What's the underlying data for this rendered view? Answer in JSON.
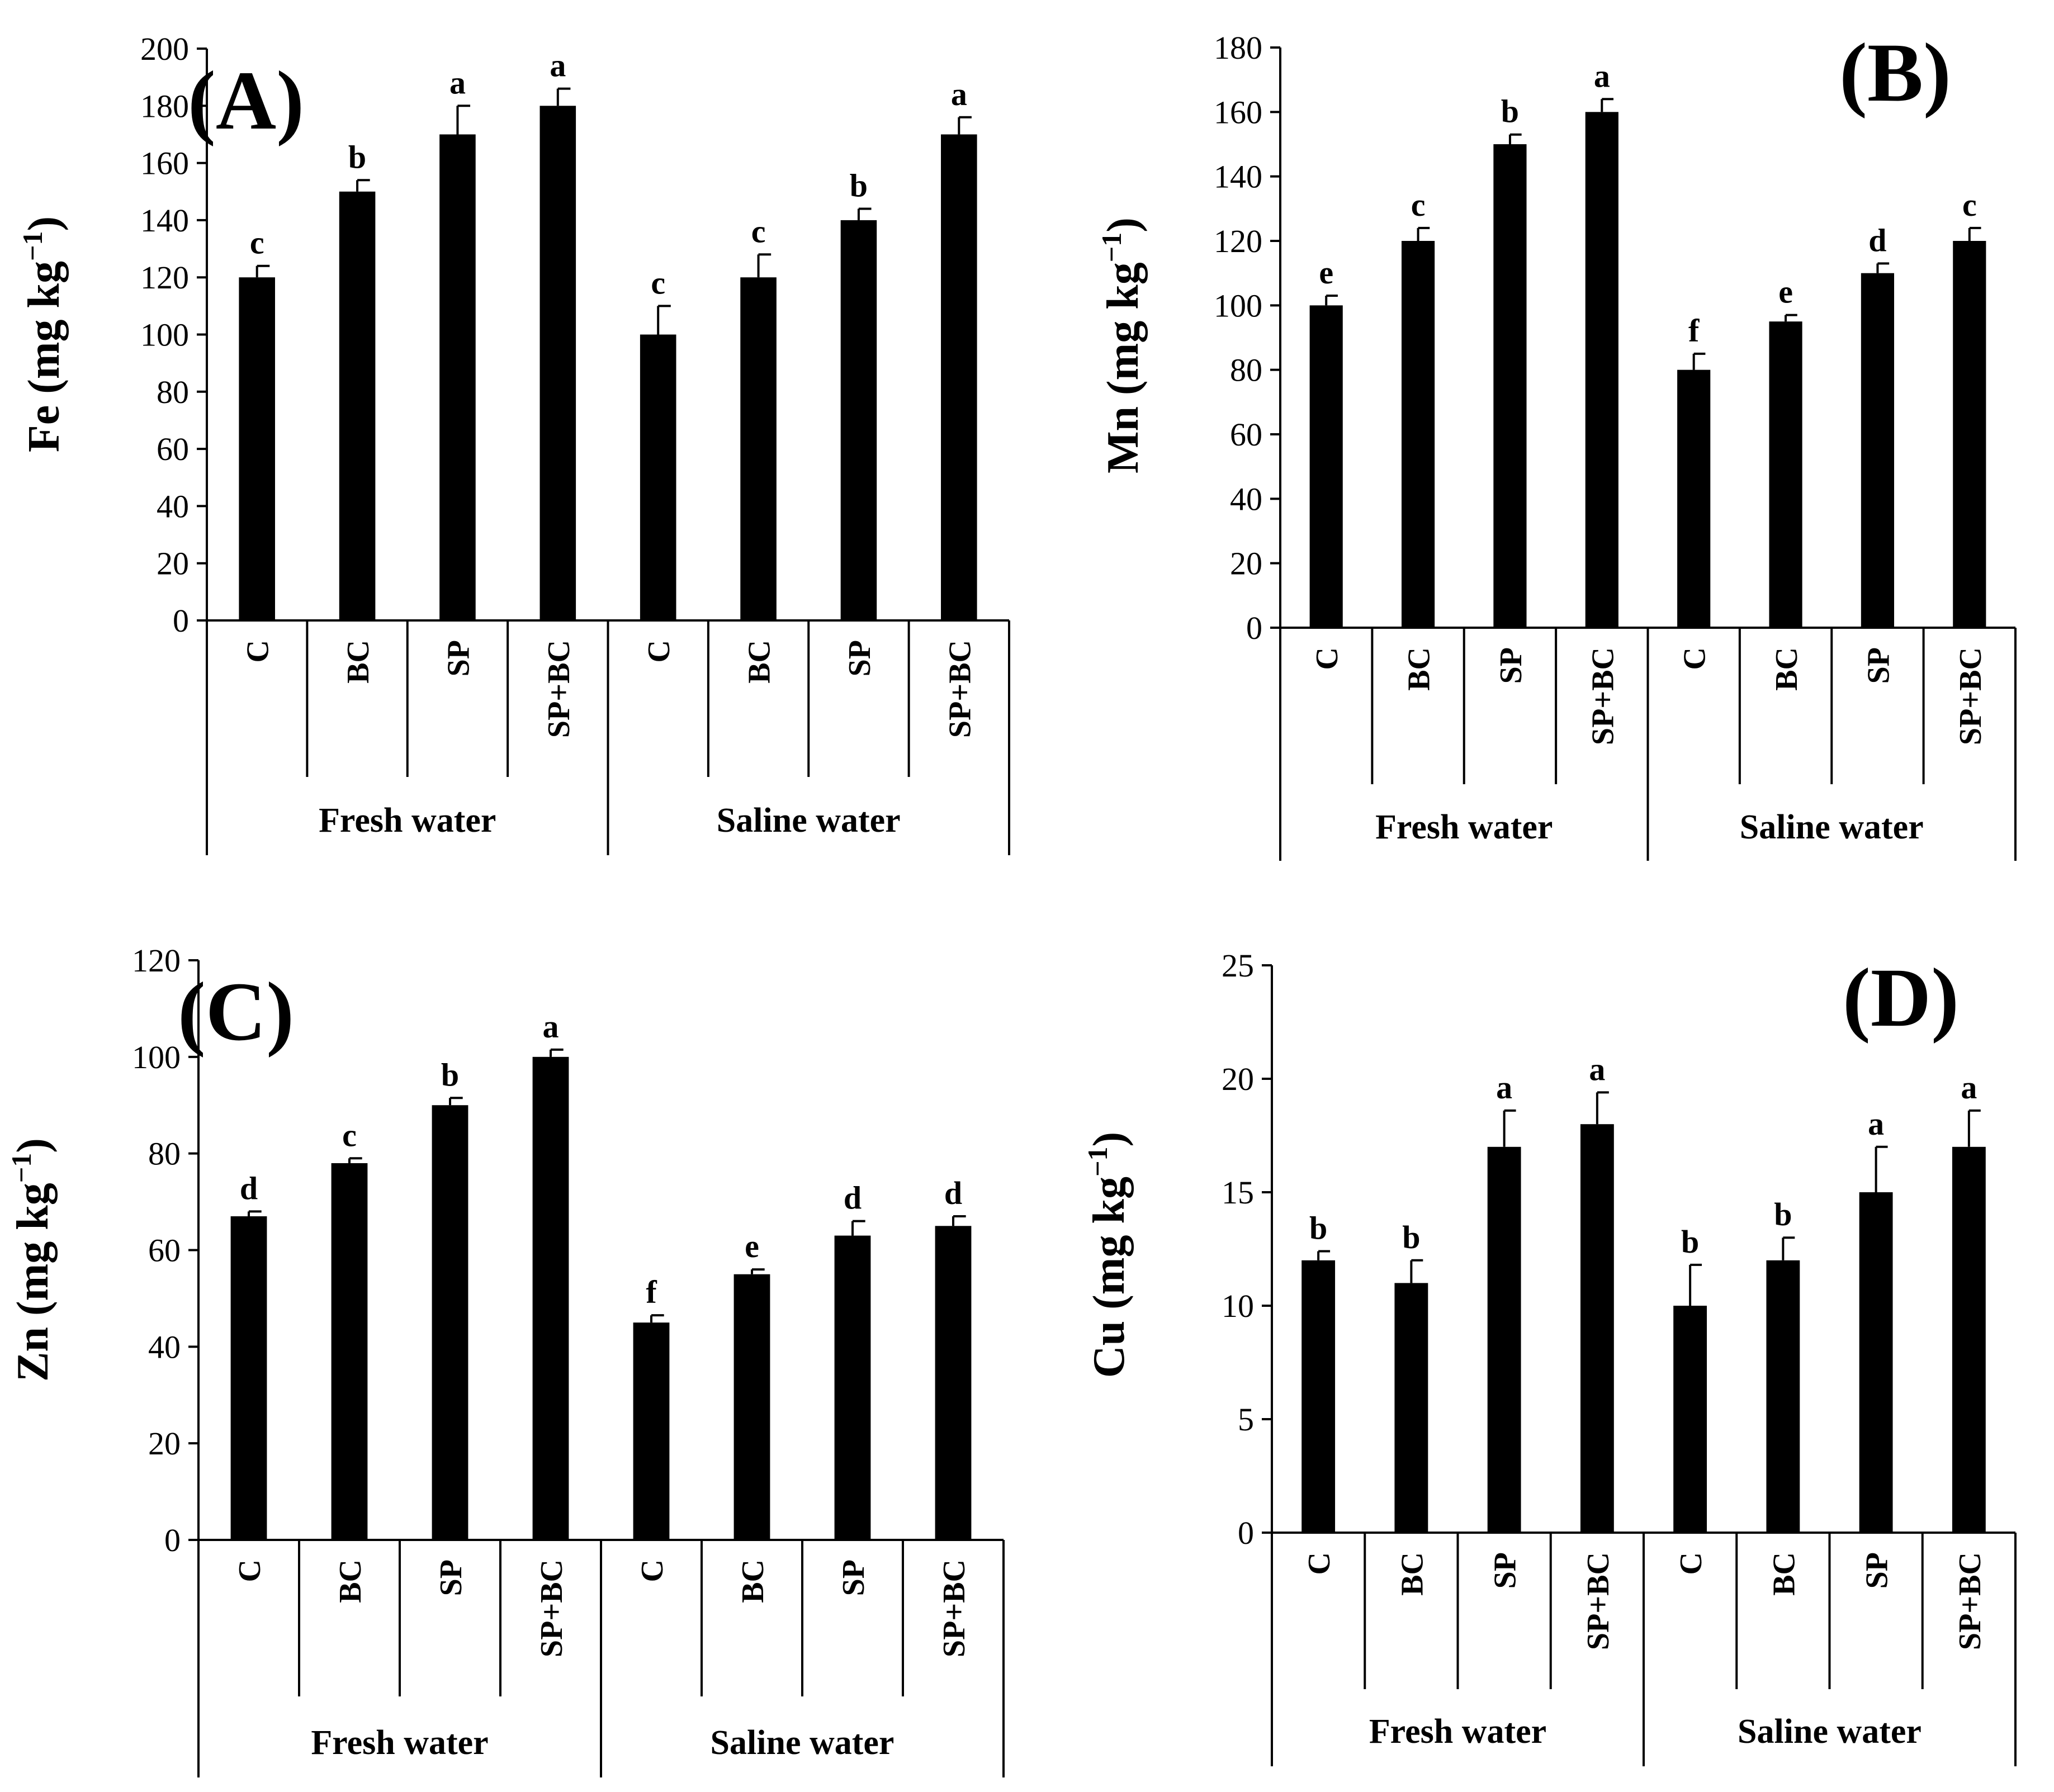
{
  "chart_data": [
    {
      "type": "bar",
      "panel_label": "(A)",
      "ylabel_main": "Fe (mg kg",
      "ylabel_sup": "−1",
      "ylabel_close": ")",
      "ylim": [
        0,
        200
      ],
      "yticks": [
        0,
        20,
        40,
        60,
        80,
        100,
        120,
        140,
        160,
        180,
        200
      ],
      "groups": [
        {
          "label": "Fresh water",
          "categories": [
            "C",
            "BC",
            "SP",
            "SP+BC"
          ]
        },
        {
          "label": "Saline water",
          "categories": [
            "C",
            "BC",
            "SP",
            "SP+BC"
          ]
        }
      ],
      "values": [
        120,
        150,
        170,
        180,
        100,
        120,
        140,
        170
      ],
      "errors": [
        4,
        4,
        10,
        6,
        10,
        8,
        4,
        6
      ],
      "letters": [
        "c",
        "b",
        "a",
        "a",
        "c",
        "c",
        "b",
        "a"
      ],
      "bar_color": "#000000"
    },
    {
      "type": "bar",
      "panel_label": "(B)",
      "ylabel_main": "Mn (mg kg",
      "ylabel_sup": "−1",
      "ylabel_close": ")",
      "ylim": [
        0,
        180
      ],
      "yticks": [
        0,
        20,
        40,
        60,
        80,
        100,
        120,
        140,
        160,
        180
      ],
      "groups": [
        {
          "label": "Fresh water",
          "categories": [
            "C",
            "BC",
            "SP",
            "SP+BC"
          ]
        },
        {
          "label": "Saline water",
          "categories": [
            "C",
            "BC",
            "SP",
            "SP+BC"
          ]
        }
      ],
      "values": [
        100,
        120,
        150,
        160,
        80,
        95,
        110,
        120
      ],
      "errors": [
        3,
        4,
        3,
        4,
        5,
        2,
        3,
        4
      ],
      "letters": [
        "e",
        "c",
        "b",
        "a",
        "f",
        "e",
        "d",
        "c"
      ],
      "bar_color": "#000000"
    },
    {
      "type": "bar",
      "panel_label": "(C)",
      "ylabel_main": "Zn (mg kg",
      "ylabel_sup": "−1",
      "ylabel_close": ")",
      "ylim": [
        0,
        120
      ],
      "yticks": [
        0,
        20,
        40,
        60,
        80,
        100,
        120
      ],
      "groups": [
        {
          "label": "Fresh water",
          "categories": [
            "C",
            "BC",
            "SP",
            "SP+BC"
          ]
        },
        {
          "label": "Saline water",
          "categories": [
            "C",
            "BC",
            "SP",
            "SP+BC"
          ]
        }
      ],
      "values": [
        67,
        78,
        90,
        100,
        45,
        55,
        63,
        65
      ],
      "errors": [
        1,
        1,
        1.5,
        1.5,
        1.5,
        1,
        3,
        2
      ],
      "letters": [
        "d",
        "c",
        "b",
        "a",
        "f",
        "e",
        "d",
        "d"
      ],
      "bar_color": "#000000"
    },
    {
      "type": "bar",
      "panel_label": "(D)",
      "ylabel_main": "Cu (mg kg",
      "ylabel_sup": "−1",
      "ylabel_close": ")",
      "ylim": [
        0,
        25
      ],
      "yticks": [
        0,
        5,
        10,
        15,
        20,
        25
      ],
      "groups": [
        {
          "label": "Fresh water",
          "categories": [
            "C",
            "BC",
            "SP",
            "SP+BC"
          ]
        },
        {
          "label": "Saline water",
          "categories": [
            "C",
            "BC",
            "SP",
            "SP+BC"
          ]
        }
      ],
      "values": [
        12,
        11,
        17,
        18,
        10,
        12,
        15,
        17
      ],
      "errors": [
        0.4,
        1,
        1.6,
        1.4,
        1.8,
        1,
        2,
        1.6
      ],
      "letters": [
        "b",
        "b",
        "a",
        "a",
        "b",
        "b",
        "a",
        "a"
      ],
      "bar_color": "#000000"
    }
  ]
}
